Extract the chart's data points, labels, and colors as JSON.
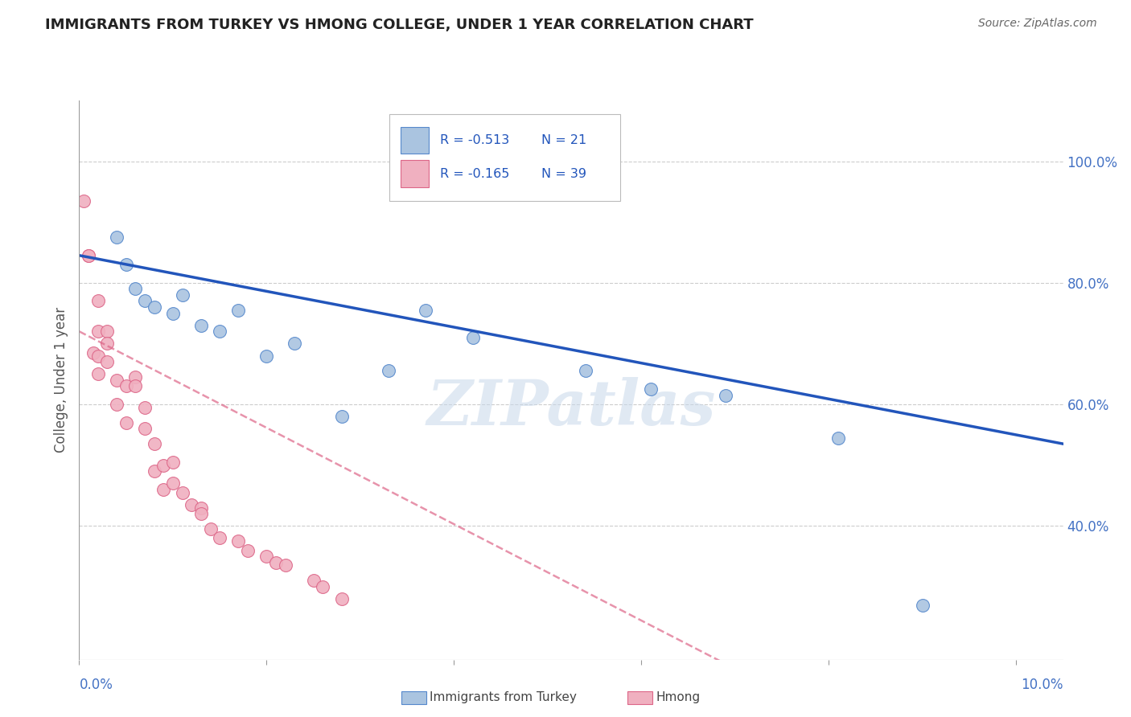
{
  "title": "IMMIGRANTS FROM TURKEY VS HMONG COLLEGE, UNDER 1 YEAR CORRELATION CHART",
  "source": "Source: ZipAtlas.com",
  "ylabel": "College, Under 1 year",
  "y_tick_labels": [
    "100.0%",
    "80.0%",
    "60.0%",
    "40.0%"
  ],
  "y_tick_values": [
    1.0,
    0.8,
    0.6,
    0.4
  ],
  "xlim": [
    0.0,
    0.105
  ],
  "ylim": [
    0.18,
    1.1
  ],
  "legend_r_blue": "R = -0.513",
  "legend_n_blue": "N = 21",
  "legend_r_pink": "R = -0.165",
  "legend_n_pink": "N = 39",
  "legend_label_blue": "Immigrants from Turkey",
  "legend_label_pink": "Hmong",
  "watermark": "ZIPatlas",
  "blue_color": "#aac4e0",
  "blue_edge_color": "#5588cc",
  "blue_line_color": "#2255bb",
  "pink_color": "#f0b0c0",
  "pink_edge_color": "#dd6688",
  "pink_line_color": "#dd6688",
  "blue_scatter_x": [
    0.004,
    0.005,
    0.006,
    0.007,
    0.008,
    0.01,
    0.011,
    0.013,
    0.015,
    0.017,
    0.02,
    0.023,
    0.028,
    0.033,
    0.037,
    0.042,
    0.054,
    0.061,
    0.069,
    0.081,
    0.09
  ],
  "blue_scatter_y": [
    0.875,
    0.83,
    0.79,
    0.77,
    0.76,
    0.75,
    0.78,
    0.73,
    0.72,
    0.755,
    0.68,
    0.7,
    0.58,
    0.655,
    0.755,
    0.71,
    0.655,
    0.625,
    0.615,
    0.545,
    0.27
  ],
  "pink_scatter_x": [
    0.0005,
    0.001,
    0.001,
    0.0015,
    0.002,
    0.002,
    0.002,
    0.002,
    0.003,
    0.003,
    0.003,
    0.004,
    0.004,
    0.005,
    0.005,
    0.006,
    0.006,
    0.007,
    0.007,
    0.008,
    0.008,
    0.009,
    0.009,
    0.01,
    0.01,
    0.011,
    0.012,
    0.013,
    0.013,
    0.014,
    0.015,
    0.017,
    0.018,
    0.02,
    0.021,
    0.022,
    0.025,
    0.026,
    0.028
  ],
  "pink_scatter_y": [
    0.935,
    0.845,
    0.845,
    0.685,
    0.77,
    0.72,
    0.68,
    0.65,
    0.72,
    0.7,
    0.67,
    0.64,
    0.6,
    0.63,
    0.57,
    0.645,
    0.63,
    0.595,
    0.56,
    0.535,
    0.49,
    0.5,
    0.46,
    0.505,
    0.47,
    0.455,
    0.435,
    0.43,
    0.42,
    0.395,
    0.38,
    0.375,
    0.36,
    0.35,
    0.34,
    0.335,
    0.31,
    0.3,
    0.28
  ],
  "blue_trend_x": [
    0.0,
    0.105
  ],
  "blue_trend_y": [
    0.845,
    0.535
  ],
  "pink_trend_x": [
    0.0,
    0.07
  ],
  "pink_trend_y": [
    0.72,
    0.165
  ],
  "grid_color": "#cccccc",
  "title_color": "#222222",
  "axis_color": "#4472c4",
  "background_color": "#ffffff"
}
